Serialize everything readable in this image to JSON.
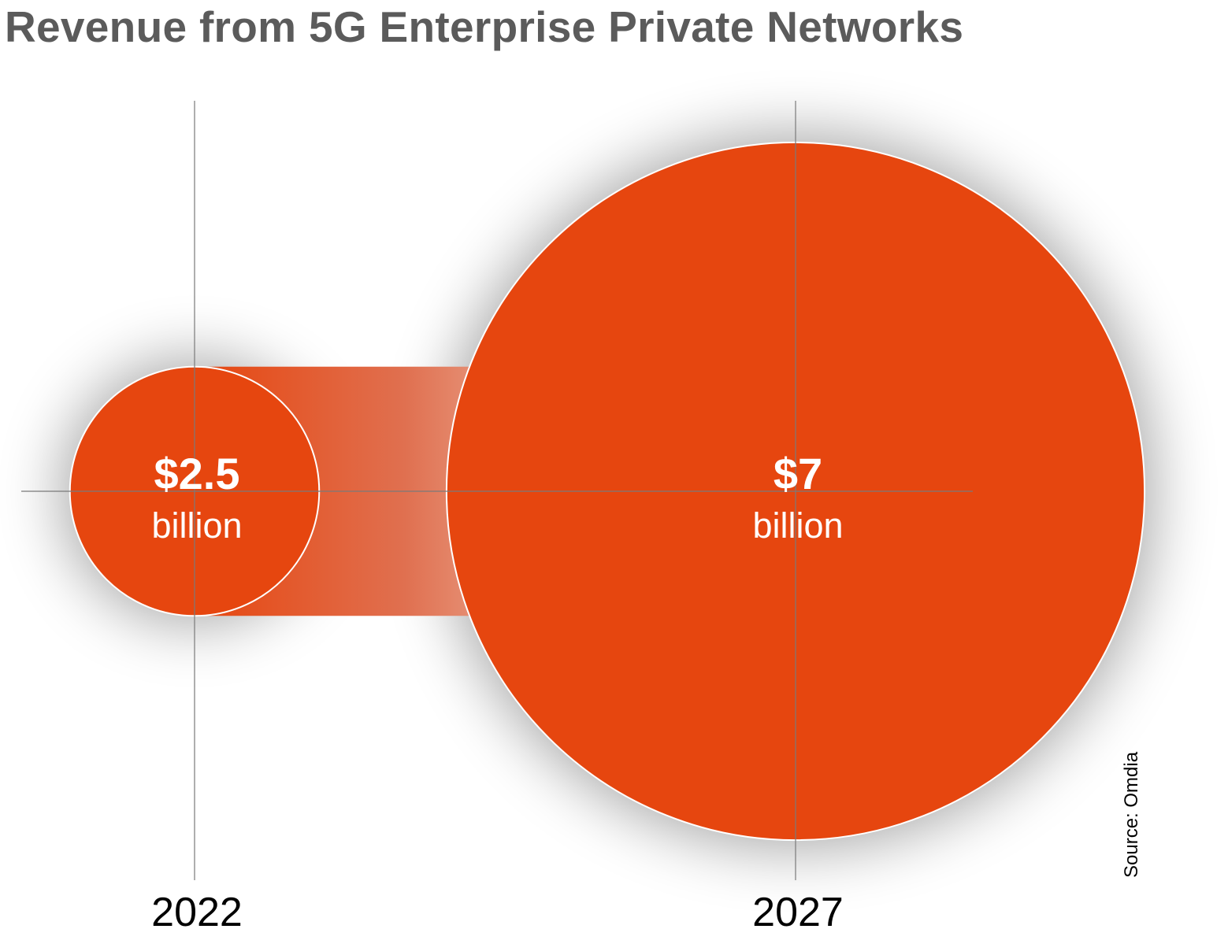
{
  "chart_data": {
    "type": "bubble",
    "title": "Revenue from 5G Enterprise Private Networks",
    "categories": [
      "2022",
      "2027"
    ],
    "values": [
      2.5,
      7
    ],
    "value_labels": [
      "$2.5",
      "$7"
    ],
    "unit_label": "billion",
    "source": "Source: Omdia",
    "colors": {
      "bubble": "#e6460f",
      "title": "#5b5b5b",
      "axis": "#7a7a7a"
    }
  }
}
